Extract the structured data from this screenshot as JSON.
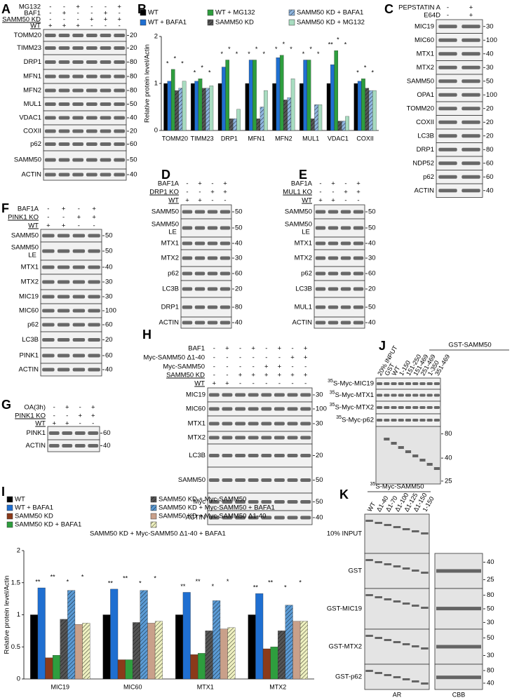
{
  "panels": {
    "A": {
      "letter": "A",
      "conditions": [
        {
          "name": "MG132",
          "signs": [
            "-",
            "-",
            "+",
            "-",
            "-",
            "+"
          ]
        },
        {
          "name": "BAF1",
          "signs": [
            "-",
            "+",
            "-",
            "-",
            "+",
            "-"
          ]
        },
        {
          "name": "SAMM50 KD",
          "signs": [
            "-",
            "-",
            "-",
            "+",
            "+",
            "+"
          ],
          "underlined": true
        },
        {
          "name": "WT",
          "signs": [
            "+",
            "+",
            "+",
            "-",
            "-",
            "-"
          ],
          "underlined": true
        }
      ],
      "blots": [
        {
          "name": "TOMM20",
          "marker": "20"
        },
        {
          "name": "TIMM23",
          "marker": "20"
        },
        {
          "name": "DRP1",
          "marker": "80"
        },
        {
          "name": "MFN1",
          "marker": "80"
        },
        {
          "name": "MFN2",
          "marker": "80"
        },
        {
          "name": "MUL1",
          "marker": "50"
        },
        {
          "name": "VDAC1",
          "marker": "40"
        },
        {
          "name": "COXII",
          "marker": "20"
        },
        {
          "name": "p62",
          "marker": "60"
        },
        {
          "name": "SAMM50",
          "marker": "50"
        },
        {
          "name": "ACTIN",
          "marker": "40"
        }
      ]
    },
    "C": {
      "letter": "C",
      "conditions": [
        {
          "name": "PEPSTATIN A",
          "signs": [
            "-",
            "+"
          ]
        },
        {
          "name": "E64D",
          "signs": [
            "-",
            "+"
          ]
        }
      ],
      "blots": [
        {
          "name": "MIC19",
          "marker": "30"
        },
        {
          "name": "MIC60",
          "marker": "100"
        },
        {
          "name": "MTX1",
          "marker": "40"
        },
        {
          "name": "MTX2",
          "marker": "30"
        },
        {
          "name": "SAMM50",
          "marker": "50"
        },
        {
          "name": "OPA1",
          "marker": "100"
        },
        {
          "name": "TOMM20",
          "marker": "20"
        },
        {
          "name": "COXII",
          "marker": "20"
        },
        {
          "name": "LC3B",
          "marker": "20"
        },
        {
          "name": "DRP1",
          "marker": "80"
        },
        {
          "name": "NDP52",
          "marker": "60"
        },
        {
          "name": "p62",
          "marker": "60"
        },
        {
          "name": "ACTIN",
          "marker": "40"
        }
      ]
    },
    "D": {
      "letter": "D",
      "conditions": [
        {
          "name": "BAF1A",
          "signs": [
            "-",
            "+",
            "-",
            "+"
          ]
        },
        {
          "name": "DRP1 KO",
          "signs": [
            "-",
            "-",
            "+",
            "+"
          ],
          "underlined": true
        },
        {
          "name": "WT",
          "signs": [
            "+",
            "+",
            "-",
            "-"
          ],
          "underlined": true
        }
      ],
      "blots": [
        {
          "name": "SAMM50",
          "marker": "50"
        },
        {
          "name": "SAMM50",
          "note": "LE",
          "marker": "50"
        },
        {
          "name": "MTX1",
          "marker": "40"
        },
        {
          "name": "MTX2",
          "marker": "30"
        },
        {
          "name": "p62",
          "marker": "60"
        },
        {
          "name": "LC3B",
          "marker": "20"
        },
        {
          "name": "DRP1",
          "marker": "80"
        },
        {
          "name": "ACTIN",
          "marker": "40"
        }
      ]
    },
    "E": {
      "letter": "E",
      "conditions": [
        {
          "name": "BAF1A",
          "signs": [
            "-",
            "+",
            "-",
            "+"
          ]
        },
        {
          "name": "MUL1 KO",
          "signs": [
            "-",
            "-",
            "+",
            "+"
          ],
          "underlined": true
        },
        {
          "name": "WT",
          "signs": [
            "+",
            "+",
            "-",
            "-"
          ],
          "underlined": true
        }
      ],
      "blots": [
        {
          "name": "SAMM50",
          "marker": "50"
        },
        {
          "name": "SAMM50",
          "note": "LE",
          "marker": "50"
        },
        {
          "name": "MTX1",
          "marker": "40"
        },
        {
          "name": "MTX2",
          "marker": "30"
        },
        {
          "name": "p62",
          "marker": "60"
        },
        {
          "name": "LC3B",
          "marker": "20"
        },
        {
          "name": "MUL1",
          "marker": "50"
        },
        {
          "name": "ACTIN",
          "marker": "40"
        }
      ]
    },
    "F": {
      "letter": "F",
      "conditions": [
        {
          "name": "BAF1A",
          "signs": [
            "-",
            "+",
            "-",
            "+"
          ]
        },
        {
          "name": "PINK1 KO",
          "signs": [
            "-",
            "-",
            "+",
            "+"
          ],
          "underlined": true
        },
        {
          "name": "WT",
          "signs": [
            "+",
            "+",
            "-",
            "-"
          ],
          "underlined": true
        }
      ],
      "blots": [
        {
          "name": "SAMM50",
          "marker": "50"
        },
        {
          "name": "SAMM50",
          "note": "LE",
          "marker": "50"
        },
        {
          "name": "MTX1",
          "marker": "40"
        },
        {
          "name": "MTX2",
          "marker": "30"
        },
        {
          "name": "MIC19",
          "marker": "30"
        },
        {
          "name": "MIC60",
          "marker": "100"
        },
        {
          "name": "p62",
          "marker": "60"
        },
        {
          "name": "LC3B",
          "marker": "20"
        },
        {
          "name": "PINK1",
          "marker": "60"
        },
        {
          "name": "ACTIN",
          "marker": "40"
        }
      ]
    },
    "G": {
      "letter": "G",
      "conditions": [
        {
          "name": "OA(3h)",
          "signs": [
            "-",
            "+",
            "-",
            "+"
          ]
        },
        {
          "name": "PINK1 KO",
          "signs": [
            "-",
            "-",
            "+",
            "+"
          ],
          "underlined": true
        },
        {
          "name": "WT",
          "signs": [
            "+",
            "+",
            "-",
            "-"
          ],
          "underlined": true
        }
      ],
      "blots": [
        {
          "name": "PINK1",
          "marker": "60"
        },
        {
          "name": "ACTIN",
          "marker": "40"
        }
      ]
    },
    "H": {
      "letter": "H",
      "conditions": [
        {
          "name": "BAF1",
          "signs": [
            "-",
            "+",
            "-",
            "+",
            "-",
            "+",
            "-",
            "+"
          ]
        },
        {
          "name": "Myc-SAMM50 Δ1-40",
          "signs": [
            "-",
            "-",
            "-",
            "-",
            "-",
            "-",
            "+",
            "+"
          ]
        },
        {
          "name": "Myc-SAMM50",
          "signs": [
            "-",
            "-",
            "-",
            "-",
            "+",
            "+",
            "-",
            "-"
          ]
        },
        {
          "name": "SAMM50 KD",
          "signs": [
            "-",
            "-",
            "+",
            "+",
            "+",
            "+",
            "+",
            "+"
          ],
          "underlined": true
        },
        {
          "name": "WT",
          "signs": [
            "+",
            "+",
            "-",
            "-",
            "-",
            "-",
            "-",
            "-"
          ],
          "underlined": true
        }
      ],
      "blots": [
        {
          "name": "MIC19",
          "marker": "30"
        },
        {
          "name": "MIC60",
          "marker": "100"
        },
        {
          "name": "MTX1",
          "marker": "30"
        },
        {
          "name": "MTX2"
        },
        {
          "name": "LC3B",
          "marker": "20"
        },
        {
          "name": "SAMM50",
          "marker": "50"
        },
        {
          "name": "Myc",
          "marker": "50"
        },
        {
          "name": "ACTIN",
          "marker": "40"
        }
      ]
    },
    "J": {
      "letter": "J",
      "header": "GST-SAMM50",
      "lanes": [
        "20% INPUT",
        "GST",
        "WT",
        "1-150",
        "151-250",
        "151-469",
        "251-469",
        "1-350",
        "351-469"
      ],
      "rows": [
        {
          "isotope": "35",
          "name": "S-Myc-MIC19"
        },
        {
          "isotope": "35",
          "name": "S-Myc-MTX1"
        },
        {
          "isotope": "35",
          "name": "S-Myc-MTX2"
        },
        {
          "isotope": "35",
          "name": "S-Myc-p62"
        }
      ],
      "gel_markers": [
        "80",
        "40",
        "25"
      ]
    },
    "K": {
      "letter": "K",
      "header": {
        "isotope": "35",
        "name": "S-Myc-SAMM50"
      },
      "lanes": [
        "WT",
        "Δ1-40",
        "Δ1-70",
        "Δ1-100",
        "Δ1-125",
        "Δ1-150",
        "1-150"
      ],
      "rows": [
        {
          "name": "10% INPUT",
          "markers": []
        },
        {
          "name": "GST",
          "markers": [
            "40",
            "25"
          ]
        },
        {
          "name": "GST-MIC19",
          "markers": [
            "80",
            "50",
            "30"
          ]
        },
        {
          "name": "GST-MTX2",
          "markers": [
            "50",
            "30"
          ]
        },
        {
          "name": "GST-p62",
          "markers": [
            "80",
            "40"
          ]
        }
      ],
      "footer": [
        "AR",
        "CBB"
      ]
    }
  },
  "chart_data": [
    {
      "panel": "B",
      "type": "bar",
      "y_label": "Relative protein level/Actin",
      "categories": [
        "TOMM20",
        "TIMM23",
        "DRP1",
        "MFN1",
        "MFN2",
        "MUL1",
        "VDAC1",
        "COXII"
      ],
      "series": [
        {
          "name": "WT",
          "color": "#000000",
          "values": [
            1,
            1,
            1,
            1,
            1,
            1,
            1,
            1
          ]
        },
        {
          "name": "WT + BAFA1",
          "color": "#1f6fd1",
          "values": [
            1.05,
            1.05,
            1.35,
            1.5,
            1.55,
            1.5,
            1.4,
            1.05
          ]
        },
        {
          "name": "WT + MG132",
          "color": "#2e9e3e",
          "values": [
            1.3,
            1.1,
            1.5,
            1.5,
            1.6,
            1.5,
            1.7,
            1.1
          ]
        },
        {
          "name": "SAMM50 KD",
          "color": "#555555",
          "hatch": true,
          "values": [
            0.85,
            0.9,
            0.25,
            0.25,
            0.65,
            0.25,
            0.2,
            0.9
          ]
        },
        {
          "name": "SAMM50 KD + BAFA1",
          "color": "#8fb6e0",
          "hatch": true,
          "values": [
            0.9,
            0.9,
            0.25,
            0.5,
            0.7,
            0.55,
            0.2,
            0.85
          ]
        },
        {
          "name": "SAMM50 KD + MG132",
          "color": "#a8dcc0",
          "values": [
            1.05,
            0.95,
            0.45,
            0.85,
            1.1,
            0.55,
            0.3,
            0.85
          ]
        }
      ],
      "ylim": [
        0,
        2
      ],
      "yticks": [
        0,
        1,
        2
      ],
      "significance": [
        [
          "*",
          "*",
          "*"
        ],
        [
          "*",
          "*",
          "*"
        ],
        [
          "*",
          "*",
          "*"
        ],
        [
          "*",
          "*",
          "*"
        ],
        [
          "*",
          "*",
          "*"
        ],
        [
          "*",
          "*",
          "*"
        ],
        [
          "**",
          "*",
          "*"
        ],
        [
          "*",
          "*",
          "*"
        ]
      ]
    },
    {
      "panel": "I",
      "type": "bar",
      "y_label": "Relative protein level/Actin",
      "categories": [
        "MIC19",
        "MIC60",
        "MTX1",
        "MTX2"
      ],
      "series": [
        {
          "name": "WT",
          "color": "#000000",
          "values": [
            1,
            1,
            1,
            1
          ]
        },
        {
          "name": "WT + BAFA1",
          "color": "#1f6fd1",
          "values": [
            1.42,
            1.4,
            1.35,
            1.33
          ]
        },
        {
          "name": "SAMM50 KD",
          "color": "#8b3a1a",
          "values": [
            0.33,
            0.3,
            0.38,
            0.47
          ]
        },
        {
          "name": "SAMM50 KD + BAFA1",
          "color": "#2e9e3e",
          "values": [
            0.37,
            0.3,
            0.4,
            0.5
          ]
        },
        {
          "name": "SAMM50 KD + Myc-SAMM50",
          "color": "#555555",
          "hatch": true,
          "values": [
            0.93,
            0.88,
            0.75,
            0.75
          ]
        },
        {
          "name": "SAMM50 KD + Myc-SAMM50 + BAFA1",
          "color": "#5b9bd5",
          "hatch": true,
          "values": [
            1.38,
            1.38,
            1.22,
            1.15
          ]
        },
        {
          "name": "SAMM50 KD + Myc-SAMM50 Δ1-40",
          "color": "#c9a08a",
          "values": [
            0.85,
            0.87,
            0.78,
            0.9
          ]
        },
        {
          "name": "SAMM50 KD + Myc-SAMM50 Δ1-40 + BAFA1",
          "color": "#eef0c0",
          "hatch": true,
          "values": [
            0.87,
            0.9,
            0.8,
            0.9
          ]
        }
      ],
      "ylim": [
        0,
        2
      ],
      "yticks": [
        0,
        0.5,
        1,
        1.5,
        2
      ],
      "significance": [
        [
          "**",
          "**",
          "*",
          "*"
        ],
        [
          "**",
          "**",
          "*",
          "*"
        ],
        [
          "**",
          "**",
          "*",
          "*"
        ],
        [
          "**",
          "**",
          "*",
          "*"
        ]
      ]
    }
  ]
}
